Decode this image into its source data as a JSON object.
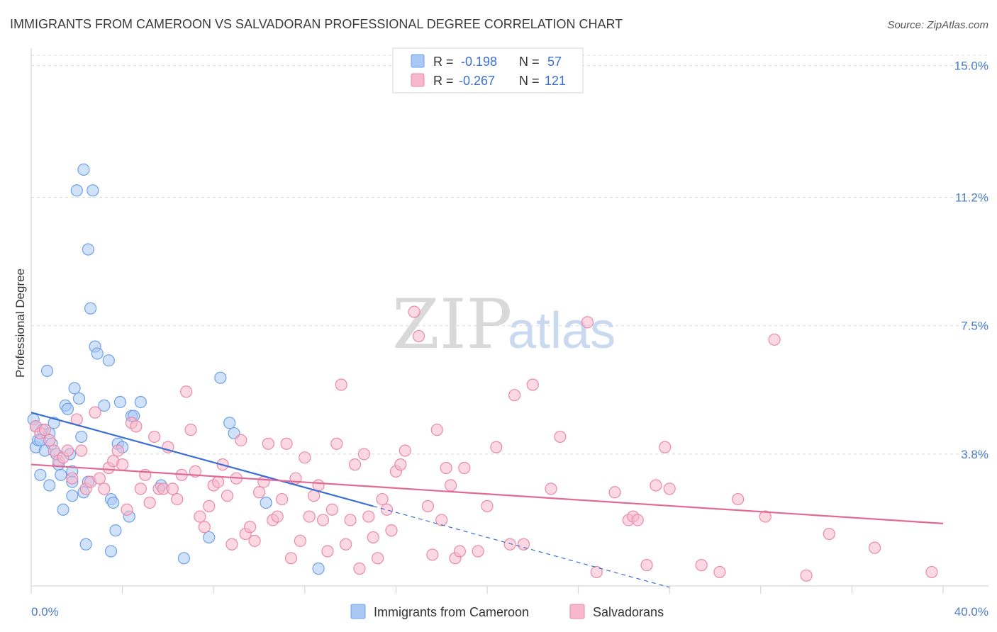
{
  "title": "IMMIGRANTS FROM CAMEROON VS SALVADORAN PROFESSIONAL DEGREE CORRELATION CHART",
  "source": "Source: ZipAtlas.com",
  "watermark": {
    "zip": "ZIP",
    "atlas": "atlas"
  },
  "legend_top": [
    {
      "r_label": "R =",
      "r_value": "-0.198",
      "n_label": "N =",
      "n_value": "57",
      "color": "#a9c8f5"
    },
    {
      "r_label": "R =",
      "r_value": "-0.267",
      "n_label": "N =",
      "n_value": "121",
      "color": "#f7b8cb"
    }
  ],
  "legend_bottom": [
    {
      "label": "Immigrants from Cameroon",
      "color": "#a9c8f5"
    },
    {
      "label": "Salvadorans",
      "color": "#f7b8cb"
    }
  ],
  "chart_data": {
    "type": "scatter",
    "title": "IMMIGRANTS FROM CAMEROON VS SALVADORAN PROFESSIONAL DEGREE CORRELATION CHART",
    "xlabel": "",
    "ylabel": "Professional Degree",
    "xlim": [
      0,
      40
    ],
    "ylim": [
      0,
      15.5
    ],
    "x_tick_labels": [
      "0.0%",
      "40.0%"
    ],
    "y_ticks": [
      3.8,
      7.5,
      11.2,
      15.0
    ],
    "y_tick_labels": [
      "3.8%",
      "7.5%",
      "11.2%",
      "15.0%"
    ],
    "grid": true,
    "legend": "top-center",
    "series": [
      {
        "name": "Immigrants from Cameroon",
        "color": "#6fa0e8",
        "fill": "#a9c8f5",
        "points": [
          [
            0.1,
            4.8
          ],
          [
            0.2,
            4.6
          ],
          [
            0.2,
            4.0
          ],
          [
            0.3,
            4.2
          ],
          [
            0.4,
            3.2
          ],
          [
            0.5,
            4.5
          ],
          [
            0.6,
            3.9
          ],
          [
            0.7,
            6.2
          ],
          [
            0.8,
            2.9
          ],
          [
            0.8,
            4.4
          ],
          [
            0.9,
            4.1
          ],
          [
            1.0,
            4.7
          ],
          [
            1.1,
            3.8
          ],
          [
            1.2,
            3.5
          ],
          [
            1.3,
            3.2
          ],
          [
            1.4,
            2.2
          ],
          [
            1.5,
            5.2
          ],
          [
            1.6,
            5.1
          ],
          [
            1.7,
            3.8
          ],
          [
            1.8,
            3.3
          ],
          [
            1.8,
            3.0
          ],
          [
            1.8,
            2.6
          ],
          [
            1.9,
            5.7
          ],
          [
            2.0,
            11.4
          ],
          [
            2.1,
            5.4
          ],
          [
            2.2,
            4.3
          ],
          [
            2.3,
            2.7
          ],
          [
            2.3,
            12.0
          ],
          [
            2.4,
            1.2
          ],
          [
            2.5,
            9.7
          ],
          [
            2.5,
            3.0
          ],
          [
            2.6,
            8.0
          ],
          [
            2.7,
            11.4
          ],
          [
            2.8,
            6.9
          ],
          [
            2.9,
            6.7
          ],
          [
            3.2,
            5.2
          ],
          [
            3.4,
            6.5
          ],
          [
            3.5,
            1.0
          ],
          [
            3.5,
            2.5
          ],
          [
            3.6,
            2.4
          ],
          [
            3.7,
            1.6
          ],
          [
            3.8,
            4.1
          ],
          [
            3.9,
            5.3
          ],
          [
            4.0,
            4.0
          ],
          [
            4.3,
            2.0
          ],
          [
            4.4,
            4.9
          ],
          [
            4.5,
            4.9
          ],
          [
            4.8,
            5.3
          ],
          [
            5.7,
            2.9
          ],
          [
            6.7,
            0.8
          ],
          [
            7.8,
            1.4
          ],
          [
            8.3,
            6.0
          ],
          [
            8.7,
            4.7
          ],
          [
            8.9,
            4.4
          ],
          [
            10.3,
            2.4
          ],
          [
            12.6,
            0.5
          ],
          [
            0.4,
            4.2
          ]
        ]
      },
      {
        "name": "Salvadorans",
        "color": "#e98aa8",
        "fill": "#f7b8cb",
        "points": [
          [
            0.2,
            4.6
          ],
          [
            0.4,
            4.4
          ],
          [
            0.6,
            4.5
          ],
          [
            0.8,
            4.2
          ],
          [
            1.0,
            3.9
          ],
          [
            1.2,
            3.6
          ],
          [
            1.4,
            3.7
          ],
          [
            1.6,
            3.9
          ],
          [
            1.8,
            3.1
          ],
          [
            2.0,
            4.8
          ],
          [
            2.2,
            3.9
          ],
          [
            2.4,
            2.8
          ],
          [
            2.6,
            3.0
          ],
          [
            2.8,
            5.0
          ],
          [
            3.0,
            3.1
          ],
          [
            3.2,
            2.8
          ],
          [
            3.4,
            3.4
          ],
          [
            3.6,
            3.6
          ],
          [
            3.8,
            3.9
          ],
          [
            4.0,
            3.5
          ],
          [
            4.2,
            2.2
          ],
          [
            4.4,
            4.7
          ],
          [
            4.6,
            4.6
          ],
          [
            4.8,
            2.8
          ],
          [
            5.0,
            3.2
          ],
          [
            5.2,
            2.4
          ],
          [
            5.4,
            4.3
          ],
          [
            5.6,
            2.8
          ],
          [
            5.8,
            2.8
          ],
          [
            6.0,
            4.0
          ],
          [
            6.2,
            2.8
          ],
          [
            6.4,
            2.5
          ],
          [
            6.6,
            3.2
          ],
          [
            6.8,
            5.6
          ],
          [
            7.0,
            4.5
          ],
          [
            7.2,
            3.3
          ],
          [
            7.4,
            2.0
          ],
          [
            7.6,
            1.7
          ],
          [
            7.8,
            2.3
          ],
          [
            8.0,
            2.9
          ],
          [
            8.2,
            3.0
          ],
          [
            8.4,
            3.5
          ],
          [
            8.6,
            2.6
          ],
          [
            8.8,
            1.2
          ],
          [
            9.0,
            3.1
          ],
          [
            9.2,
            4.2
          ],
          [
            9.4,
            1.5
          ],
          [
            9.6,
            1.7
          ],
          [
            9.8,
            1.3
          ],
          [
            10.0,
            2.7
          ],
          [
            10.2,
            3.0
          ],
          [
            10.4,
            4.1
          ],
          [
            10.6,
            1.9
          ],
          [
            10.8,
            2.0
          ],
          [
            11.0,
            2.5
          ],
          [
            11.2,
            4.1
          ],
          [
            11.4,
            0.8
          ],
          [
            11.6,
            3.1
          ],
          [
            11.8,
            1.3
          ],
          [
            12.0,
            3.7
          ],
          [
            12.2,
            2.0
          ],
          [
            12.4,
            2.6
          ],
          [
            12.6,
            2.9
          ],
          [
            12.8,
            1.9
          ],
          [
            13.0,
            1.0
          ],
          [
            13.2,
            2.2
          ],
          [
            13.4,
            4.1
          ],
          [
            13.6,
            5.8
          ],
          [
            13.8,
            1.2
          ],
          [
            14.0,
            1.9
          ],
          [
            14.2,
            3.5
          ],
          [
            14.4,
            0.5
          ],
          [
            14.6,
            3.8
          ],
          [
            14.8,
            2.0
          ],
          [
            15.0,
            1.4
          ],
          [
            15.2,
            0.8
          ],
          [
            15.4,
            2.5
          ],
          [
            15.6,
            2.2
          ],
          [
            15.8,
            1.6
          ],
          [
            16.0,
            3.3
          ],
          [
            16.2,
            3.5
          ],
          [
            16.4,
            3.9
          ],
          [
            16.8,
            7.9
          ],
          [
            17.0,
            7.2
          ],
          [
            17.4,
            2.3
          ],
          [
            17.6,
            0.9
          ],
          [
            17.8,
            4.5
          ],
          [
            18.0,
            1.9
          ],
          [
            18.2,
            3.4
          ],
          [
            18.4,
            2.9
          ],
          [
            18.6,
            0.8
          ],
          [
            18.8,
            1.0
          ],
          [
            19.0,
            3.4
          ],
          [
            19.6,
            1.0
          ],
          [
            20.0,
            2.3
          ],
          [
            20.4,
            4.0
          ],
          [
            21.0,
            1.2
          ],
          [
            21.2,
            5.5
          ],
          [
            21.6,
            1.2
          ],
          [
            22.0,
            5.8
          ],
          [
            22.8,
            2.8
          ],
          [
            23.2,
            4.3
          ],
          [
            24.4,
            7.6
          ],
          [
            24.8,
            0.4
          ],
          [
            25.6,
            2.7
          ],
          [
            26.2,
            1.9
          ],
          [
            26.4,
            2.0
          ],
          [
            26.6,
            1.9
          ],
          [
            27.0,
            0.6
          ],
          [
            27.4,
            2.9
          ],
          [
            27.8,
            4.0
          ],
          [
            28.0,
            2.8
          ],
          [
            29.4,
            0.6
          ],
          [
            30.2,
            0.4
          ],
          [
            31.0,
            2.5
          ],
          [
            32.2,
            2.0
          ],
          [
            32.6,
            7.1
          ],
          [
            34.0,
            0.3
          ],
          [
            35.0,
            1.5
          ],
          [
            37.0,
            1.1
          ],
          [
            39.5,
            0.4
          ]
        ]
      }
    ],
    "trend_lines": [
      {
        "series": "Immigrants from Cameroon",
        "x0": 0,
        "y0": 5.0,
        "x1": 15.0,
        "y1": 2.3,
        "dashed_to_x": 28.0,
        "color": "#3a6fd1"
      },
      {
        "series": "Salvadorans",
        "x0": 0,
        "y0": 3.5,
        "x1": 40.0,
        "y1": 1.8,
        "color": "#e06a95"
      }
    ]
  }
}
